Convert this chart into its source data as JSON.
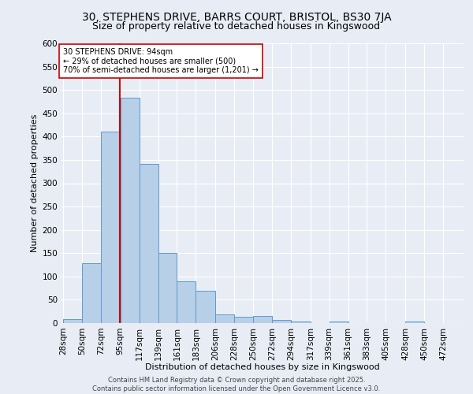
{
  "title1": "30, STEPHENS DRIVE, BARRS COURT, BRISTOL, BS30 7JA",
  "title2": "Size of property relative to detached houses in Kingswood",
  "xlabel": "Distribution of detached houses by size in Kingswood",
  "ylabel": "Number of detached properties",
  "bar_values": [
    8,
    128,
    410,
    484,
    342,
    150,
    90,
    70,
    18,
    13,
    15,
    6,
    4,
    0,
    3,
    0,
    0,
    0,
    3
  ],
  "bin_labels": [
    "28sqm",
    "50sqm",
    "72sqm",
    "95sqm",
    "117sqm",
    "139sqm",
    "161sqm",
    "183sqm",
    "206sqm",
    "228sqm",
    "250sqm",
    "272sqm",
    "294sqm",
    "317sqm",
    "339sqm",
    "361sqm",
    "383sqm",
    "405sqm",
    "428sqm",
    "450sqm",
    "472sqm"
  ],
  "bin_edges": [
    28,
    50,
    72,
    95,
    117,
    139,
    161,
    183,
    206,
    228,
    250,
    272,
    294,
    317,
    339,
    361,
    383,
    405,
    428,
    450,
    472
  ],
  "bar_color": "#b8cfe8",
  "bar_edge_color": "#5b9bd5",
  "property_value": 94,
  "red_line_color": "#cc0000",
  "annotation_text": "30 STEPHENS DRIVE: 94sqm\n← 29% of detached houses are smaller (500)\n70% of semi-detached houses are larger (1,201) →",
  "annotation_box_color": "#ffffff",
  "annotation_box_edge": "#cc0000",
  "ylim": [
    0,
    600
  ],
  "yticks": [
    0,
    50,
    100,
    150,
    200,
    250,
    300,
    350,
    400,
    450,
    500,
    550,
    600
  ],
  "bg_color": "#e8edf5",
  "grid_color": "#ffffff",
  "footer": "Contains HM Land Registry data © Crown copyright and database right 2025.\nContains public sector information licensed under the Open Government Licence v3.0.",
  "title1_fontsize": 10,
  "title2_fontsize": 9,
  "annotation_fontsize": 7,
  "footer_fontsize": 6,
  "axis_fontsize": 7.5,
  "xlabel_fontsize": 8,
  "ylabel_fontsize": 8
}
